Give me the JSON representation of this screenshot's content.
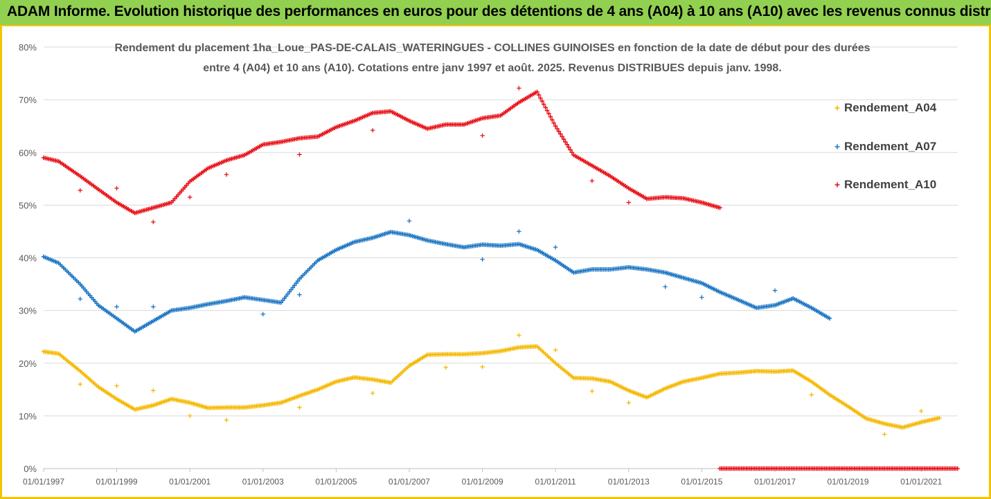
{
  "header": {
    "title": "ADAM Informe. Evolution historique des performances en euros pour des détentions de 4 ans (A04) à 10 ans (A10) avec les revenus connus distribués"
  },
  "colors": {
    "banner": "#92d050",
    "frame": "#f5c400",
    "A04": "#f5b800",
    "A07": "#1f77c4",
    "A10": "#e8141b"
  },
  "chart_data": {
    "type": "scatter",
    "title_line1": "Rendement du placement 1ha_Loue_PAS-DE-CALAIS_WATERINGUES - COLLINES GUINOISES en fonction de la date de début pour des durées",
    "title_line2": "entre 4 (A04) et 10 ans (A10). Cotations entre janv 1997 et août. 2025. Revenus DISTRIBUES depuis janv. 1998.",
    "xlabel": "",
    "ylabel": "",
    "x_ticks": [
      "01/01/1997",
      "01/01/1999",
      "01/01/2001",
      "01/01/2003",
      "01/01/2005",
      "01/01/2007",
      "01/01/2009",
      "01/01/2011",
      "01/01/2013",
      "01/01/2015",
      "01/01/2017",
      "01/01/2019",
      "01/01/2021"
    ],
    "y_ticks": [
      "0%",
      "10%",
      "20%",
      "30%",
      "40%",
      "50%",
      "60%",
      "70%",
      "80%"
    ],
    "xlim": [
      "1997-01-01",
      "2022-01-01"
    ],
    "ylim": [
      0,
      80
    ],
    "grid": "horizontal",
    "legend_position": "right",
    "series": [
      {
        "name": "Rendement_A04",
        "color": "#f5b800",
        "points": [
          [
            "1997-01-01",
            22.2
          ],
          [
            "1997-06-01",
            21.8
          ],
          [
            "1998-01-01",
            18.5
          ],
          [
            "1998-07-01",
            15.5
          ],
          [
            "1999-01-01",
            13.2
          ],
          [
            "1999-07-01",
            11.2
          ],
          [
            "2000-01-01",
            12.0
          ],
          [
            "2000-07-01",
            13.2
          ],
          [
            "2001-01-01",
            12.5
          ],
          [
            "2001-07-01",
            11.5
          ],
          [
            "2002-01-01",
            11.6
          ],
          [
            "2002-07-01",
            11.6
          ],
          [
            "2003-01-01",
            12.0
          ],
          [
            "2003-07-01",
            12.5
          ],
          [
            "2004-01-01",
            13.8
          ],
          [
            "2004-07-01",
            15.0
          ],
          [
            "2005-01-01",
            16.5
          ],
          [
            "2005-07-01",
            17.3
          ],
          [
            "2006-01-01",
            16.9
          ],
          [
            "2006-07-01",
            16.3
          ],
          [
            "2007-01-01",
            19.5
          ],
          [
            "2007-07-01",
            21.6
          ],
          [
            "2008-01-01",
            21.7
          ],
          [
            "2008-07-01",
            21.7
          ],
          [
            "2009-01-01",
            21.9
          ],
          [
            "2009-07-01",
            22.3
          ],
          [
            "2010-01-01",
            23.0
          ],
          [
            "2010-07-01",
            23.2
          ],
          [
            "2011-01-01",
            20.0
          ],
          [
            "2011-07-01",
            17.2
          ],
          [
            "2012-01-01",
            17.1
          ],
          [
            "2012-07-01",
            16.5
          ],
          [
            "2013-01-01",
            14.8
          ],
          [
            "2013-07-01",
            13.5
          ],
          [
            "2014-01-01",
            15.2
          ],
          [
            "2014-07-01",
            16.5
          ],
          [
            "2015-01-01",
            17.2
          ],
          [
            "2015-07-01",
            18.0
          ],
          [
            "2016-01-01",
            18.2
          ],
          [
            "2016-07-01",
            18.5
          ],
          [
            "2017-01-01",
            18.4
          ],
          [
            "2017-07-01",
            18.6
          ],
          [
            "2018-01-01",
            16.5
          ],
          [
            "2018-07-01",
            14.0
          ],
          [
            "2019-01-01",
            11.8
          ],
          [
            "2019-07-01",
            9.5
          ],
          [
            "2020-01-01",
            8.5
          ],
          [
            "2020-07-01",
            7.8
          ],
          [
            "2021-01-01",
            8.8
          ],
          [
            "2021-07-01",
            9.6
          ]
        ],
        "outliers": [
          [
            "1998-01-01",
            16.0
          ],
          [
            "1999-01-01",
            15.7
          ],
          [
            "2000-01-01",
            14.8
          ],
          [
            "2001-01-01",
            10.0
          ],
          [
            "2002-01-01",
            9.2
          ],
          [
            "2004-01-01",
            11.6
          ],
          [
            "2006-01-01",
            14.3
          ],
          [
            "2008-01-01",
            19.2
          ],
          [
            "2009-01-01",
            19.3
          ],
          [
            "2010-01-01",
            25.3
          ],
          [
            "2011-01-01",
            22.5
          ],
          [
            "2012-01-01",
            14.7
          ],
          [
            "2013-01-01",
            12.5
          ],
          [
            "2018-01-01",
            14.0
          ],
          [
            "2020-01-01",
            6.5
          ],
          [
            "2021-01-01",
            10.9
          ]
        ]
      },
      {
        "name": "Rendement_A07",
        "color": "#1f77c4",
        "points": [
          [
            "1997-01-01",
            40.2
          ],
          [
            "1997-06-01",
            39.0
          ],
          [
            "1998-01-01",
            35.0
          ],
          [
            "1998-07-01",
            31.0
          ],
          [
            "1999-01-01",
            28.5
          ],
          [
            "1999-07-01",
            26.0
          ],
          [
            "2000-01-01",
            28.0
          ],
          [
            "2000-07-01",
            30.0
          ],
          [
            "2001-01-01",
            30.5
          ],
          [
            "2001-07-01",
            31.2
          ],
          [
            "2002-01-01",
            31.8
          ],
          [
            "2002-07-01",
            32.5
          ],
          [
            "2003-01-01",
            32.0
          ],
          [
            "2003-07-01",
            31.5
          ],
          [
            "2004-01-01",
            36.0
          ],
          [
            "2004-07-01",
            39.5
          ],
          [
            "2005-01-01",
            41.5
          ],
          [
            "2005-07-01",
            43.0
          ],
          [
            "2006-01-01",
            43.8
          ],
          [
            "2006-07-01",
            44.9
          ],
          [
            "2007-01-01",
            44.3
          ],
          [
            "2007-07-01",
            43.3
          ],
          [
            "2008-01-01",
            42.6
          ],
          [
            "2008-07-01",
            42.0
          ],
          [
            "2009-01-01",
            42.5
          ],
          [
            "2009-07-01",
            42.3
          ],
          [
            "2010-01-01",
            42.6
          ],
          [
            "2010-07-01",
            41.5
          ],
          [
            "2011-01-01",
            39.5
          ],
          [
            "2011-07-01",
            37.2
          ],
          [
            "2012-01-01",
            37.8
          ],
          [
            "2012-07-01",
            37.8
          ],
          [
            "2013-01-01",
            38.2
          ],
          [
            "2013-07-01",
            37.8
          ],
          [
            "2014-01-01",
            37.2
          ],
          [
            "2014-07-01",
            36.2
          ],
          [
            "2015-01-01",
            35.2
          ],
          [
            "2015-07-01",
            33.5
          ],
          [
            "2016-01-01",
            32.0
          ],
          [
            "2016-07-01",
            30.5
          ],
          [
            "2017-01-01",
            31.0
          ],
          [
            "2017-07-01",
            32.3
          ],
          [
            "2018-01-01",
            30.5
          ],
          [
            "2018-07-01",
            28.5
          ]
        ],
        "outliers": [
          [
            "1998-01-01",
            32.2
          ],
          [
            "1999-01-01",
            30.7
          ],
          [
            "2000-01-01",
            30.7
          ],
          [
            "2003-01-01",
            29.3
          ],
          [
            "2004-01-01",
            33.0
          ],
          [
            "2007-01-01",
            47.0
          ],
          [
            "2009-01-01",
            39.7
          ],
          [
            "2010-01-01",
            45.0
          ],
          [
            "2011-01-01",
            42.0
          ],
          [
            "2014-01-01",
            34.5
          ],
          [
            "2015-01-01",
            32.5
          ],
          [
            "2017-01-01",
            33.8
          ]
        ]
      },
      {
        "name": "Rendement_A10",
        "color": "#e8141b",
        "points": [
          [
            "1997-01-01",
            59.0
          ],
          [
            "1997-06-01",
            58.3
          ],
          [
            "1998-01-01",
            55.5
          ],
          [
            "1998-07-01",
            53.0
          ],
          [
            "1999-01-01",
            50.5
          ],
          [
            "1999-07-01",
            48.5
          ],
          [
            "2000-01-01",
            49.5
          ],
          [
            "2000-07-01",
            50.5
          ],
          [
            "2001-01-01",
            54.5
          ],
          [
            "2001-07-01",
            57.0
          ],
          [
            "2002-01-01",
            58.5
          ],
          [
            "2002-07-01",
            59.5
          ],
          [
            "2003-01-01",
            61.5
          ],
          [
            "2003-07-01",
            62.0
          ],
          [
            "2004-01-01",
            62.7
          ],
          [
            "2004-07-01",
            63.0
          ],
          [
            "2005-01-01",
            64.8
          ],
          [
            "2005-07-01",
            66.0
          ],
          [
            "2006-01-01",
            67.5
          ],
          [
            "2006-07-01",
            67.8
          ],
          [
            "2007-01-01",
            66.0
          ],
          [
            "2007-07-01",
            64.5
          ],
          [
            "2008-01-01",
            65.3
          ],
          [
            "2008-07-01",
            65.3
          ],
          [
            "2009-01-01",
            66.5
          ],
          [
            "2009-07-01",
            67.0
          ],
          [
            "2010-01-01",
            69.5
          ],
          [
            "2010-07-01",
            71.5
          ],
          [
            "2011-01-01",
            65.0
          ],
          [
            "2011-07-01",
            59.5
          ],
          [
            "2012-01-01",
            57.5
          ],
          [
            "2012-07-01",
            55.5
          ],
          [
            "2013-01-01",
            53.2
          ],
          [
            "2013-07-01",
            51.2
          ],
          [
            "2014-01-01",
            51.5
          ],
          [
            "2014-07-01",
            51.3
          ],
          [
            "2015-01-01",
            50.5
          ],
          [
            "2015-07-01",
            49.5
          ]
        ],
        "outliers": [
          [
            "1998-01-01",
            52.8
          ],
          [
            "1999-01-01",
            53.2
          ],
          [
            "2000-01-01",
            46.8
          ],
          [
            "2001-01-01",
            51.5
          ],
          [
            "2002-01-01",
            55.8
          ],
          [
            "2004-01-01",
            59.6
          ],
          [
            "2006-01-01",
            64.2
          ],
          [
            "2009-01-01",
            63.2
          ],
          [
            "2010-01-01",
            72.2
          ],
          [
            "2012-01-01",
            54.6
          ],
          [
            "2013-01-01",
            50.5
          ]
        ],
        "zero_segment": [
          "2015-07-01",
          "2022-01-01",
          0
        ]
      }
    ]
  }
}
